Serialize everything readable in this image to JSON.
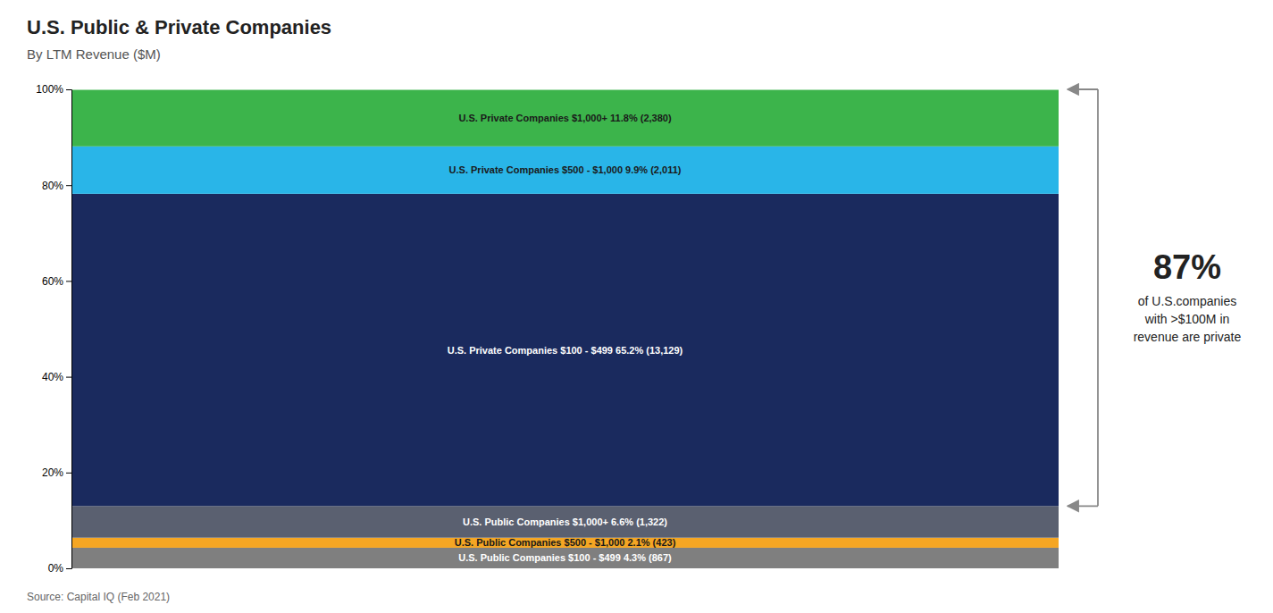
{
  "chart_data": {
    "type": "bar",
    "stacked": true,
    "title": "U.S. Public & Private Companies",
    "subtitle": "By LTM Revenue ($M)",
    "source": "Source: Capital IQ (Feb 2021)",
    "categories": [
      null
    ],
    "series": [
      {
        "name": "U.S. Public Companies $100 - $499 4.3% (867)",
        "color": "#7f7f7f",
        "values": [
          4.3
        ]
      },
      {
        "name": "U.S. Public Companies $500 - $1,000 2.1% (423)",
        "color": "#f5a623",
        "values": [
          2.1
        ]
      },
      {
        "name": "U.S. Public Companies $1,000+ 6.6% (1,322)",
        "color": "#5a6070",
        "values": [
          6.6
        ]
      },
      {
        "name": "U.S. Private Companies $100 - $499 65.2% (13,129)",
        "color": "#1a2a5e",
        "values": [
          65.2
        ]
      },
      {
        "name": "U.S. Private Companies $500 - $1,000 9.9% (2,011)",
        "color": "#29b5e8",
        "values": [
          9.9
        ]
      },
      {
        "name": "U.S. Private Companies $1,000+ 11.8% (2,380)",
        "color": "#3cb44b",
        "values": [
          11.8
        ]
      }
    ],
    "ylim": [
      0,
      100
    ],
    "yticks": [
      {
        "value": 0,
        "label": "0%"
      },
      {
        "value": 20,
        "label": "20%"
      },
      {
        "value": 40,
        "label": "40%"
      },
      {
        "value": 60,
        "label": "60%"
      },
      {
        "value": 80,
        "label": "80%"
      },
      {
        "value": 100,
        "label": "100%"
      }
    ],
    "grid": false,
    "tick_labels": "y",
    "annotation": {
      "text": [
        "87%",
        "of U.S.companies",
        "with >$100M in",
        "revenue are private"
      ],
      "y_from": 13.0,
      "y_to": 100.0
    }
  }
}
